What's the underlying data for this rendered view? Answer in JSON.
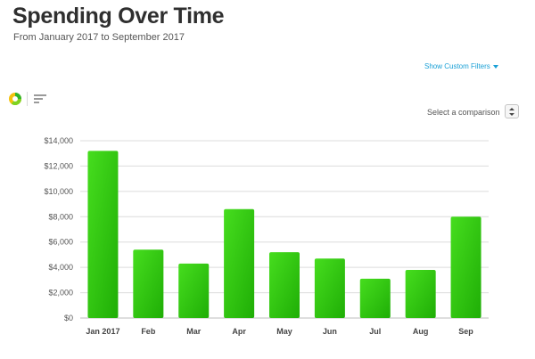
{
  "header": {
    "title": "Spending Over Time",
    "subtitle": "From January 2017 to September 2017"
  },
  "toolbar": {
    "filters_label": "Show Custom Filters",
    "comparison_label": "Select a comparison",
    "donut_icon": "donut-chart-icon",
    "bars_icon": "bar-list-icon"
  },
  "colors": {
    "bar_top": "#46dd1e",
    "bar_bottom": "#1fae06",
    "link": "#1aa0d6",
    "gridline": "#dcdcdc"
  },
  "chart_data": {
    "type": "bar",
    "categories": [
      "Jan 2017",
      "Feb",
      "Mar",
      "Apr",
      "May",
      "Jun",
      "Jul",
      "Aug",
      "Sep"
    ],
    "values": [
      13200,
      5400,
      4300,
      8600,
      5200,
      4700,
      3100,
      3800,
      8000
    ],
    "yticks": [
      "$0",
      "$2,000",
      "$4,000",
      "$6,000",
      "$8,000",
      "$10,000",
      "$12,000",
      "$14,000"
    ],
    "ylim": [
      0,
      14000
    ],
    "grid": true,
    "title": "",
    "xlabel": "",
    "ylabel": ""
  }
}
